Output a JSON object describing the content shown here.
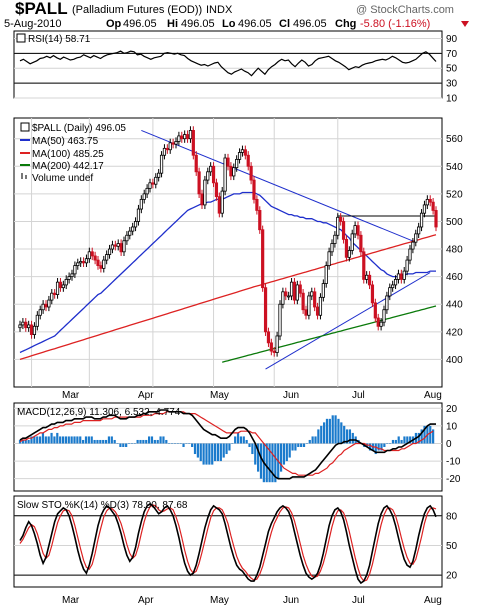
{
  "header": {
    "symbol": "$PALL",
    "name": "(Palladium Futures (EOD))",
    "exchange": "INDX",
    "date": "5-Aug-2010",
    "watermark": "@ StockCharts.com",
    "open_label": "Op",
    "open": "496.05",
    "high_label": "Hi",
    "high": "496.05",
    "low_label": "Lo",
    "low": "496.05",
    "close_label": "Cl",
    "close": "496.05",
    "change_label": "Chg",
    "change": "-5.80 (-1.16%)"
  },
  "colors": {
    "price_up": "#000000",
    "price_down": "#cc1122",
    "ma50": "#1f2fcc",
    "ma100": "#dd2222",
    "ma200": "#0a7a0a",
    "macd_hist": "#1a7acc",
    "signal": "#dd2222",
    "grid": "#d4d4d4"
  },
  "chart_data": [
    {
      "type": "line",
      "panel": "RSI",
      "legend": "RSI(14) 58.71",
      "x_axis": "trading days, 24-Feb-2010 to 5-Aug-2010",
      "ylim": [
        10,
        100
      ],
      "yticks": [
        90,
        70,
        50,
        30,
        10
      ],
      "reference_lines": [
        70,
        30
      ],
      "series": [
        {
          "name": "RSI(14)",
          "values": [
            60,
            62,
            59,
            56,
            58,
            60,
            63,
            64,
            66,
            64,
            67,
            64,
            62,
            65,
            63,
            61,
            62,
            64,
            65,
            68,
            66,
            64,
            67,
            65,
            63,
            66,
            68,
            69,
            70,
            71,
            73,
            70,
            71,
            73,
            72,
            68,
            69,
            66,
            64,
            62,
            64,
            65,
            66,
            70,
            71,
            70,
            69,
            70,
            68,
            67,
            63,
            60,
            58,
            56,
            54,
            55,
            53,
            55,
            57,
            58,
            52,
            48,
            44,
            42,
            45,
            47,
            49,
            46,
            44,
            40,
            45,
            50,
            46,
            42,
            48,
            52,
            55,
            59,
            62,
            60,
            61,
            56,
            52,
            57,
            61,
            58,
            53,
            55,
            60,
            63,
            64,
            65,
            66,
            63,
            60,
            58,
            55,
            52,
            48,
            50,
            52,
            51,
            54,
            56,
            57,
            58,
            60,
            61,
            62,
            61,
            63,
            66,
            64,
            61,
            58,
            57,
            58,
            60,
            62,
            66,
            70,
            72,
            69,
            64,
            59
          ]
        }
      ]
    },
    {
      "type": "candlestick",
      "panel": "Price",
      "x_axis": "trading days, 24-Feb-2010 to 5-Aug-2010",
      "ylim": [
        380,
        575
      ],
      "yticks": [
        400,
        420,
        440,
        460,
        480,
        500,
        520,
        540,
        560
      ],
      "xticks": [
        "Mar",
        "Apr",
        "May",
        "Jun",
        "Jul",
        "Aug"
      ],
      "legend": [
        {
          "label": "$PALL (Daily) 496.05"
        },
        {
          "label": "MA(50) 463.75"
        },
        {
          "label": "MA(100) 485.25"
        },
        {
          "label": "MA(200) 442.17"
        },
        {
          "label": "Volume undef"
        }
      ],
      "close": [
        425,
        427,
        423,
        425,
        418,
        424,
        432,
        436,
        440,
        438,
        443,
        448,
        447,
        456,
        452,
        454,
        458,
        460,
        462,
        468,
        470,
        471,
        470,
        473,
        478,
        475,
        472,
        468,
        466,
        472,
        476,
        480,
        483,
        482,
        484,
        478,
        486,
        490,
        493,
        496,
        500,
        509,
        516,
        520,
        524,
        528,
        527,
        532,
        535,
        548,
        553,
        552,
        557,
        556,
        558,
        562,
        560,
        563,
        560,
        566,
        548,
        536,
        520,
        512,
        530,
        536,
        540,
        528,
        518,
        506,
        522,
        546,
        540,
        533,
        539,
        545,
        550,
        552,
        548,
        540,
        530,
        516,
        508,
        494,
        452,
        420,
        412,
        406,
        405,
        417,
        440,
        449,
        446,
        446,
        456,
        443,
        454,
        448,
        436,
        432,
        446,
        449,
        438,
        432,
        445,
        455,
        468,
        478,
        484,
        490,
        503,
        500,
        487,
        474,
        479,
        491,
        497,
        490,
        478,
        458,
        461,
        454,
        441,
        430,
        424,
        427,
        436,
        446,
        452,
        454,
        458,
        462,
        458,
        464,
        472,
        480,
        485,
        491,
        496,
        506,
        512,
        516,
        514,
        508,
        496
      ],
      "ma50": [
        405,
        406,
        407,
        408,
        409,
        410,
        411,
        412,
        413,
        414,
        415,
        416,
        417,
        419,
        421,
        423,
        425,
        427,
        429,
        431,
        433,
        435,
        437,
        439,
        441,
        443,
        445,
        447,
        448,
        450,
        452,
        454,
        456,
        458,
        460,
        462,
        464,
        466,
        468,
        470,
        472,
        474,
        476,
        478,
        480,
        482,
        484,
        486,
        488,
        490,
        492,
        494,
        496,
        498,
        500,
        502,
        504,
        506,
        508,
        509,
        510,
        511,
        512,
        513,
        513,
        514,
        514,
        515,
        516,
        516,
        516,
        517,
        518,
        519,
        520,
        520,
        520,
        521,
        521,
        521,
        521,
        521,
        520,
        519,
        517,
        515,
        513,
        511,
        510,
        509,
        508,
        507,
        506,
        505,
        505,
        504,
        504,
        503,
        503,
        502,
        502,
        502,
        501,
        500,
        500,
        499,
        499,
        498,
        497,
        496,
        495,
        494,
        492,
        490,
        488,
        485,
        483,
        481,
        479,
        477,
        475,
        473,
        471,
        469,
        467,
        465,
        464,
        462,
        461,
        460,
        460,
        460,
        461,
        461,
        462,
        462,
        462,
        463,
        463,
        463,
        463,
        463,
        464,
        464,
        464
      ],
      "ma100": [],
      "ma200": []
    },
    {
      "type": "line+bar",
      "panel": "MACD",
      "legend": "MACD(12,26,9) 11.306, 6.532, 4.774",
      "ylim": [
        -27,
        23
      ],
      "yticks": [
        20,
        10,
        0,
        -10,
        -20
      ],
      "macd": [
        2,
        3,
        3,
        4,
        5,
        6,
        7,
        8,
        9,
        9,
        10,
        11,
        11,
        12,
        12,
        12,
        13,
        13,
        13,
        14,
        14,
        14,
        14,
        15,
        15,
        15,
        14,
        14,
        14,
        15,
        15,
        16,
        16,
        16,
        15,
        14,
        14,
        14,
        15,
        15,
        15,
        16,
        16,
        17,
        17,
        18,
        18,
        18,
        18,
        19,
        19,
        19,
        18,
        18,
        18,
        18,
        18,
        17,
        17,
        17,
        16,
        14,
        12,
        10,
        8,
        7,
        6,
        5,
        5,
        4,
        3,
        3,
        3,
        4,
        6,
        8,
        9,
        9,
        9,
        8,
        6,
        3,
        0,
        -4,
        -8,
        -11,
        -13,
        -15,
        -17,
        -19,
        -20,
        -20,
        -20,
        -20,
        -20,
        -19,
        -19,
        -19,
        -19,
        -19,
        -18,
        -17,
        -16,
        -15,
        -13,
        -11,
        -9,
        -7,
        -5,
        -3,
        -1,
        0,
        0,
        1,
        1,
        2,
        2,
        2,
        1,
        0,
        -1,
        -2,
        -3,
        -4,
        -5,
        -5,
        -5,
        -5,
        -4,
        -4,
        -3,
        -3,
        -2,
        -2,
        -1,
        0,
        1,
        2,
        3,
        4,
        6,
        8,
        10,
        11,
        11,
        11
      ],
      "signal": [
        1,
        2,
        2,
        3,
        3,
        4,
        5,
        6,
        6,
        7,
        8,
        8,
        9,
        9,
        10,
        10,
        11,
        11,
        11,
        12,
        12,
        12,
        13,
        13,
        13,
        13,
        13,
        13,
        13,
        14,
        14,
        14,
        14,
        15,
        15,
        15,
        15,
        15,
        15,
        15,
        15,
        15,
        15,
        16,
        16,
        16,
        16,
        17,
        17,
        17,
        17,
        18,
        18,
        18,
        18,
        18,
        18,
        18,
        17,
        17,
        17,
        17,
        16,
        15,
        14,
        13,
        12,
        11,
        10,
        9,
        8,
        7,
        6,
        6,
        6,
        6,
        6,
        7,
        7,
        7,
        7,
        6,
        6,
        4,
        2,
        0,
        -2,
        -4,
        -6,
        -8,
        -10,
        -12,
        -14,
        -15,
        -16,
        -17,
        -17,
        -18,
        -18,
        -18,
        -18,
        -18,
        -18,
        -17,
        -17,
        -16,
        -15,
        -14,
        -12,
        -11,
        -9,
        -7,
        -6,
        -4,
        -3,
        -2,
        -1,
        0,
        0,
        0,
        0,
        -1,
        -1,
        -2,
        -2,
        -3,
        -3,
        -4,
        -4,
        -4,
        -4,
        -4,
        -4,
        -3,
        -3,
        -2,
        -1,
        0,
        0,
        1,
        2,
        3,
        5,
        6,
        7
      ]
    },
    {
      "type": "line",
      "panel": "Slow STO",
      "legend": "Slow STO %K(14) %D(3) 78.90, 87.68",
      "ylim": [
        8,
        100
      ],
      "yticks": [
        80,
        50,
        20
      ],
      "reference_lines": [
        80,
        20
      ],
      "series": [
        {
          "name": "%K(14)",
          "values": [
            55,
            60,
            68,
            74,
            70,
            62,
            52,
            40,
            32,
            38,
            50,
            62,
            74,
            82,
            85,
            88,
            86,
            80,
            70,
            58,
            45,
            34,
            26,
            22,
            30,
            42,
            56,
            70,
            80,
            86,
            90,
            88,
            84,
            80,
            72,
            62,
            50,
            40,
            34,
            38,
            48,
            62,
            74,
            84,
            90,
            92,
            90,
            86,
            82,
            84,
            88,
            90,
            86,
            80,
            70,
            58,
            44,
            32,
            24,
            20,
            22,
            30,
            42,
            55,
            68,
            78,
            86,
            90,
            88,
            86,
            82,
            72,
            60,
            48,
            38,
            30,
            26,
            24,
            20,
            16,
            14,
            14,
            20,
            28,
            40,
            52,
            64,
            72,
            78,
            84,
            88,
            90,
            88,
            84,
            76,
            64,
            52,
            40,
            30,
            22,
            18,
            16,
            18,
            22,
            30,
            42,
            56,
            70,
            80,
            86,
            88,
            84,
            76,
            64,
            50,
            38,
            26,
            16,
            12,
            14,
            20,
            30,
            44,
            58,
            72,
            82,
            88,
            90,
            86,
            80,
            70,
            58,
            46,
            36,
            30,
            28,
            34,
            46,
            60,
            72,
            82,
            88,
            90,
            86,
            79
          ]
        },
        {
          "name": "%D(3)",
          "values": [
            52,
            56,
            62,
            68,
            71,
            69,
            62,
            52,
            42,
            37,
            40,
            50,
            62,
            73,
            80,
            85,
            86,
            85,
            80,
            70,
            58,
            46,
            35,
            28,
            26,
            31,
            42,
            56,
            68,
            79,
            85,
            88,
            87,
            84,
            79,
            72,
            62,
            51,
            42,
            37,
            40,
            49,
            62,
            74,
            83,
            89,
            91,
            90,
            86,
            84,
            85,
            87,
            88,
            86,
            79,
            70,
            58,
            45,
            34,
            26,
            22,
            24,
            32,
            43,
            55,
            67,
            78,
            85,
            88,
            88,
            86,
            80,
            72,
            60,
            49,
            39,
            32,
            27,
            24,
            20,
            17,
            15,
            16,
            21,
            29,
            40,
            52,
            63,
            72,
            78,
            84,
            88,
            89,
            88,
            83,
            75,
            64,
            52,
            40,
            31,
            24,
            19,
            18,
            19,
            24,
            32,
            43,
            56,
            69,
            79,
            85,
            86,
            83,
            75,
            64,
            51,
            38,
            27,
            18,
            14,
            15,
            21,
            31,
            44,
            58,
            71,
            81,
            87,
            88,
            86,
            80,
            70,
            58,
            47,
            38,
            32,
            31,
            36,
            47,
            59,
            72,
            82,
            87,
            88,
            87
          ]
        }
      ]
    }
  ]
}
